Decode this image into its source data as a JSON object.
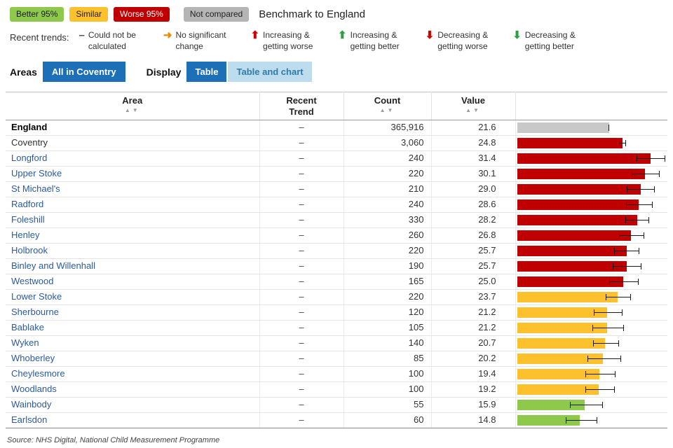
{
  "colors": {
    "accent": "#1d70b8",
    "link": "#2b5ba0",
    "chips": {
      "better": {
        "bg": "#8fc94c",
        "fg": "#1a1a1a"
      },
      "similar": {
        "bg": "#fdc12e",
        "fg": "#1a1a1a"
      },
      "worse": {
        "bg": "#c00000",
        "fg": "#ffffff"
      },
      "not_compared": {
        "bg": "#b5b5b5",
        "fg": "#222222"
      }
    },
    "bars": {
      "benchmark": "#c8c8c8",
      "worse": "#c00000",
      "similar": "#fdc12e",
      "better": "#8fc94c"
    }
  },
  "compare_legend": {
    "items": [
      {
        "label": "Better 95%",
        "status": "better"
      },
      {
        "label": "Similar",
        "status": "similar"
      },
      {
        "label": "Worse 95%",
        "status": "worse"
      },
      {
        "label": "Not compared",
        "status": "not_compared"
      }
    ],
    "benchmark_label": "Benchmark to England"
  },
  "trend_legend": {
    "title": "Recent trends:",
    "items": [
      {
        "icon": "minus-icon",
        "symbol": "–",
        "color": "#555555",
        "label": "Could not be calculated"
      },
      {
        "icon": "right-arrow-icon",
        "symbol": "➜",
        "color": "#ed8b00",
        "label": "No significant change"
      },
      {
        "icon": "up-arrow-icon",
        "symbol": "⬆",
        "color": "#d10000",
        "label": "Increasing & getting worse"
      },
      {
        "icon": "up-arrow-icon",
        "symbol": "⬆",
        "color": "#2f9e44",
        "label": "Increasing & getting better"
      },
      {
        "icon": "down-arrow-icon",
        "symbol": "⬇",
        "color": "#d10000",
        "label": "Decreasing & getting worse"
      },
      {
        "icon": "down-arrow-icon",
        "symbol": "⬇",
        "color": "#2f9e44",
        "label": "Decreasing & getting better"
      }
    ]
  },
  "controls": {
    "areas_label": "Areas",
    "area_selector": "All in Coventry",
    "display_label": "Display",
    "tabs": [
      {
        "label": "Table",
        "active": true
      },
      {
        "label": "Table and chart",
        "active": false
      }
    ]
  },
  "chart": {
    "xmin": 0,
    "xmax": 35
  },
  "table": {
    "headers": {
      "area": "Area",
      "trend": "Recent\nTrend",
      "count": "Count",
      "value": "Value"
    },
    "sort_icons": {
      "asc": "▲",
      "desc": "▼"
    },
    "rows": [
      {
        "area": "England",
        "trend": "–",
        "count": "365,916",
        "value": "21.6",
        "status": "benchmark",
        "ci_low": 21.5,
        "ci_high": 21.7,
        "bold": true,
        "link": false
      },
      {
        "area": "Coventry",
        "trend": "–",
        "count": "3,060",
        "value": "24.8",
        "status": "worse",
        "ci_low": 24.0,
        "ci_high": 25.6,
        "bold": false,
        "link": false
      },
      {
        "area": "Longford",
        "trend": "–",
        "count": "240",
        "value": "31.4",
        "status": "worse",
        "ci_low": 28.0,
        "ci_high": 34.9,
        "bold": false,
        "link": true
      },
      {
        "area": "Upper Stoke",
        "trend": "–",
        "count": "220",
        "value": "30.1",
        "status": "worse",
        "ci_low": 26.9,
        "ci_high": 33.5,
        "bold": false,
        "link": true
      },
      {
        "area": "St Michael's",
        "trend": "–",
        "count": "210",
        "value": "29.0",
        "status": "worse",
        "ci_low": 25.8,
        "ci_high": 32.4,
        "bold": false,
        "link": true
      },
      {
        "area": "Radford",
        "trend": "–",
        "count": "240",
        "value": "28.6",
        "status": "worse",
        "ci_low": 25.6,
        "ci_high": 31.8,
        "bold": false,
        "link": true
      },
      {
        "area": "Foleshill",
        "trend": "–",
        "count": "330",
        "value": "28.2",
        "status": "worse",
        "ci_low": 25.5,
        "ci_high": 31.1,
        "bold": false,
        "link": true
      },
      {
        "area": "Henley",
        "trend": "–",
        "count": "260",
        "value": "26.8",
        "status": "worse",
        "ci_low": 23.9,
        "ci_high": 29.9,
        "bold": false,
        "link": true
      },
      {
        "area": "Holbrook",
        "trend": "–",
        "count": "220",
        "value": "25.7",
        "status": "worse",
        "ci_low": 22.8,
        "ci_high": 28.8,
        "bold": false,
        "link": true
      },
      {
        "area": "Binley and Willenhall",
        "trend": "–",
        "count": "190",
        "value": "25.7",
        "status": "worse",
        "ci_low": 22.5,
        "ci_high": 29.2,
        "bold": false,
        "link": true
      },
      {
        "area": "Westwood",
        "trend": "–",
        "count": "165",
        "value": "25.0",
        "status": "worse",
        "ci_low": 21.7,
        "ci_high": 28.6,
        "bold": false,
        "link": true
      },
      {
        "area": "Lower Stoke",
        "trend": "–",
        "count": "220",
        "value": "23.7",
        "status": "similar",
        "ci_low": 20.9,
        "ci_high": 26.7,
        "bold": false,
        "link": true
      },
      {
        "area": "Sherbourne",
        "trend": "–",
        "count": "120",
        "value": "21.2",
        "status": "similar",
        "ci_low": 18.0,
        "ci_high": 24.8,
        "bold": false,
        "link": true
      },
      {
        "area": "Bablake",
        "trend": "–",
        "count": "105",
        "value": "21.2",
        "status": "similar",
        "ci_low": 17.7,
        "ci_high": 25.2,
        "bold": false,
        "link": true
      },
      {
        "area": "Wyken",
        "trend": "–",
        "count": "140",
        "value": "20.7",
        "status": "similar",
        "ci_low": 17.8,
        "ci_high": 23.9,
        "bold": false,
        "link": true
      },
      {
        "area": "Whoberley",
        "trend": "–",
        "count": "85",
        "value": "20.2",
        "status": "similar",
        "ci_low": 16.5,
        "ci_high": 24.5,
        "bold": false,
        "link": true
      },
      {
        "area": "Cheylesmore",
        "trend": "–",
        "count": "100",
        "value": "19.4",
        "status": "similar",
        "ci_low": 16.1,
        "ci_high": 23.2,
        "bold": false,
        "link": true
      },
      {
        "area": "Woodlands",
        "trend": "–",
        "count": "100",
        "value": "19.2",
        "status": "similar",
        "ci_low": 16.0,
        "ci_high": 22.9,
        "bold": false,
        "link": true
      },
      {
        "area": "Wainbody",
        "trend": "–",
        "count": "55",
        "value": "15.9",
        "status": "better",
        "ci_low": 12.4,
        "ci_high": 20.2,
        "bold": false,
        "link": true
      },
      {
        "area": "Earlsdon",
        "trend": "–",
        "count": "60",
        "value": "14.8",
        "status": "better",
        "ci_low": 11.5,
        "ci_high": 18.8,
        "bold": false,
        "link": true
      }
    ]
  },
  "source": "Source: NHS Digital, National Child Measurement Programme"
}
